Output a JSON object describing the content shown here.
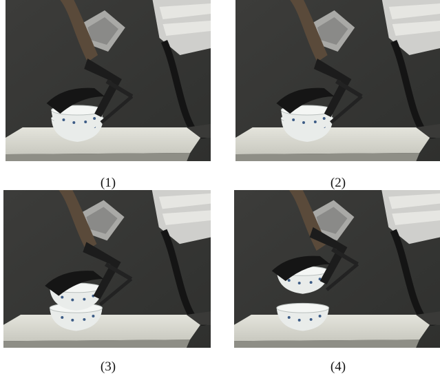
{
  "captions": [
    "(1)",
    "(2)",
    "(3)",
    "(4)"
  ]
}
